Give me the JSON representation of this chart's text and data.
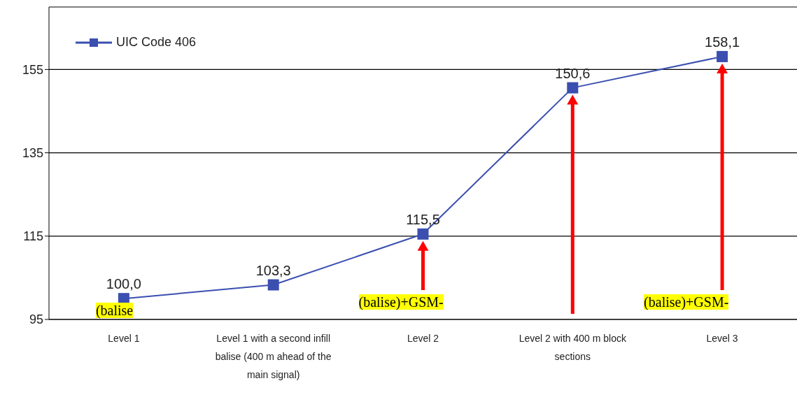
{
  "chart_data": {
    "type": "line",
    "categories": [
      "Level 1",
      "Level 1 with a second infill balise (400 m ahead of the main signal)",
      "Level 2",
      "Level 2 with 400 m block sections",
      "Level 3"
    ],
    "series": [
      {
        "name": "UIC Code 406",
        "color": "#3a4fb0",
        "values": [
          100.0,
          103.3,
          115.5,
          150.6,
          158.1
        ],
        "value_labels": [
          "100,0",
          "103,3",
          "115,5",
          "150,6",
          "158,1"
        ]
      }
    ],
    "ylim": [
      95,
      170
    ],
    "yticks": [
      95,
      115,
      135,
      155
    ],
    "grid": "y",
    "legend": "top left",
    "marker": "square",
    "annotations": [
      {
        "text": "(balise",
        "x": "Level 1",
        "y": 100.0
      },
      "(balise)+GSM-",
      "(balise)+GSM-"
    ]
  }
}
